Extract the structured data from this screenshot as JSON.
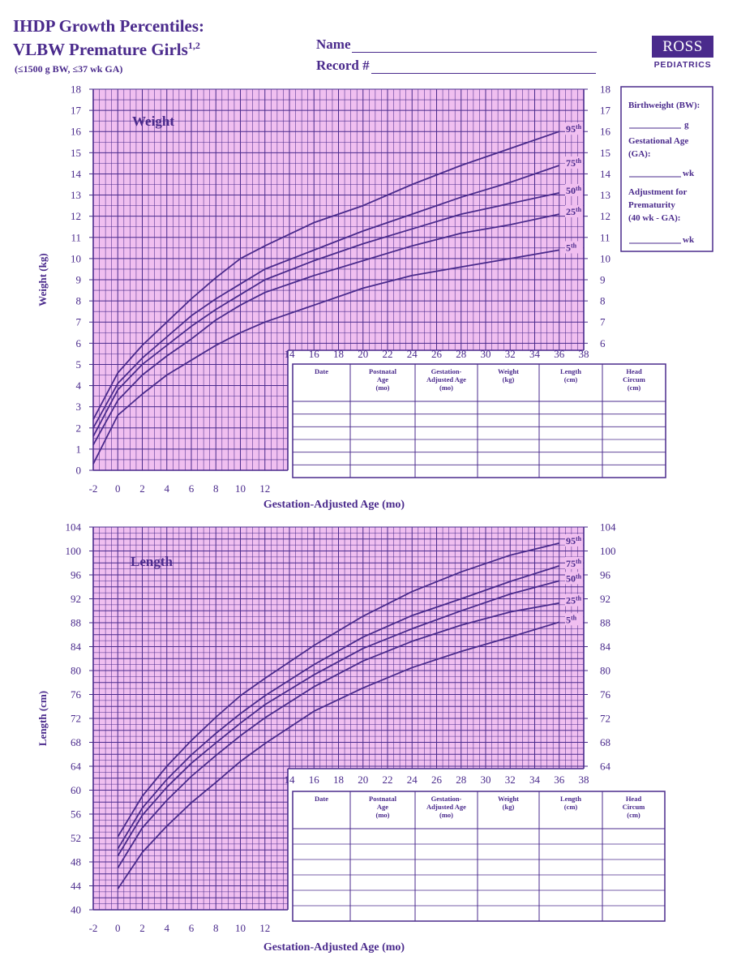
{
  "header": {
    "title_line1": "IHDP Growth Percentiles:",
    "title_line2": "VLBW Premature Girls",
    "title_sup": "1,2",
    "subtitle": "(≤1500 g BW, ≤37 wk GA)",
    "name_label": "Name",
    "record_label": "Record #"
  },
  "logo": {
    "brand": "ROSS",
    "sub": "PEDIATRICS"
  },
  "ga_box": {
    "birthweight_label": "Birthweight (BW):",
    "birthweight_unit": "g",
    "ga_label_1": "Gestational Age",
    "ga_label_2": "(GA):",
    "ga_unit": "wk",
    "adj_label_1": "Adjustment for",
    "adj_label_2": "Prematurity",
    "adj_label_3": "(40 wk - GA):",
    "adj_unit": "wk"
  },
  "table": {
    "headers": [
      [
        "Date"
      ],
      [
        "Postnatal",
        "Age",
        "(mo)"
      ],
      [
        "Gestation-",
        "Adjusted Age",
        "(mo)"
      ],
      [
        "Weight",
        "(kg)"
      ],
      [
        "Length",
        "(cm)"
      ],
      [
        "Head",
        "Circum",
        "(cm)"
      ]
    ]
  },
  "chart_data": [
    {
      "type": "line",
      "title": "Weight",
      "xlabel": "Gestation-Adjusted Age (mo)",
      "ylabel": "Weight (kg)",
      "xlim": [
        -2,
        38
      ],
      "ylim": [
        0,
        18
      ],
      "x_ticks_lower": [
        -2,
        0,
        2,
        4,
        6,
        8,
        10,
        12
      ],
      "x_ticks_upper": [
        14,
        16,
        18,
        20,
        22,
        24,
        26,
        28,
        30,
        32,
        34,
        36,
        38
      ],
      "y_ticks_left": [
        0,
        1,
        2,
        3,
        4,
        5,
        6,
        7,
        8,
        9,
        10,
        11,
        12,
        13,
        14,
        15,
        16,
        17,
        18
      ],
      "y_ticks_right": [
        6,
        7,
        8,
        9,
        10,
        11,
        12,
        13,
        14,
        15,
        16,
        17,
        18
      ],
      "grid": true,
      "series": [
        {
          "name": "95th",
          "x": [
            -2,
            0,
            2,
            4,
            6,
            8,
            10,
            12,
            16,
            20,
            24,
            28,
            32,
            36
          ],
          "values": [
            2.4,
            4.6,
            5.9,
            7.0,
            8.1,
            9.1,
            10.0,
            10.6,
            11.7,
            12.5,
            13.5,
            14.4,
            15.2,
            16.0
          ]
        },
        {
          "name": "75th",
          "x": [
            -2,
            0,
            2,
            4,
            6,
            8,
            10,
            12,
            16,
            20,
            24,
            28,
            32,
            36
          ],
          "values": [
            2.0,
            4.1,
            5.3,
            6.3,
            7.3,
            8.1,
            8.8,
            9.5,
            10.4,
            11.3,
            12.1,
            12.9,
            13.6,
            14.4
          ]
        },
        {
          "name": "50th",
          "x": [
            -2,
            0,
            2,
            4,
            6,
            8,
            10,
            12,
            16,
            20,
            24,
            28,
            32,
            36
          ],
          "values": [
            1.6,
            3.8,
            5.0,
            5.9,
            6.8,
            7.6,
            8.3,
            9.0,
            9.9,
            10.7,
            11.4,
            12.1,
            12.6,
            13.1
          ]
        },
        {
          "name": "25th",
          "x": [
            -2,
            0,
            2,
            4,
            6,
            8,
            10,
            12,
            16,
            20,
            24,
            28,
            32,
            36
          ],
          "values": [
            1.2,
            3.3,
            4.5,
            5.4,
            6.2,
            7.1,
            7.8,
            8.4,
            9.2,
            9.9,
            10.6,
            11.2,
            11.6,
            12.1
          ]
        },
        {
          "name": "5th",
          "x": [
            -2,
            0,
            2,
            4,
            6,
            8,
            10,
            12,
            16,
            20,
            24,
            28,
            32,
            36
          ],
          "values": [
            0.3,
            2.6,
            3.6,
            4.5,
            5.2,
            5.9,
            6.5,
            7.0,
            7.8,
            8.6,
            9.2,
            9.6,
            10.0,
            10.4
          ]
        }
      ]
    },
    {
      "type": "line",
      "title": "Length",
      "xlabel": "Gestation-Adjusted Age (mo)",
      "ylabel": "Length (cm)",
      "xlim": [
        -2,
        38
      ],
      "ylim": [
        40,
        104
      ],
      "x_ticks_lower": [
        -2,
        0,
        2,
        4,
        6,
        8,
        10,
        12
      ],
      "x_ticks_upper": [
        14,
        16,
        18,
        20,
        22,
        24,
        26,
        28,
        30,
        32,
        34,
        36,
        38
      ],
      "y_ticks_left": [
        40,
        44,
        48,
        52,
        56,
        60,
        64,
        68,
        72,
        76,
        80,
        84,
        88,
        92,
        96,
        100,
        104
      ],
      "y_ticks_right": [
        64,
        68,
        72,
        76,
        80,
        84,
        88,
        92,
        96,
        100,
        104
      ],
      "grid": true,
      "series": [
        {
          "name": "95th",
          "x": [
            0,
            2,
            4,
            6,
            8,
            10,
            12,
            16,
            20,
            24,
            28,
            32,
            36
          ],
          "values": [
            52.2,
            59.0,
            64.0,
            68.3,
            72.2,
            75.8,
            78.7,
            84.2,
            89.1,
            93.2,
            96.5,
            99.3,
            101.3
          ]
        },
        {
          "name": "75th",
          "x": [
            0,
            2,
            4,
            6,
            8,
            10,
            12,
            16,
            20,
            24,
            28,
            32,
            36
          ],
          "values": [
            50.2,
            57.0,
            61.8,
            65.9,
            69.5,
            72.8,
            75.8,
            81.0,
            85.6,
            89.2,
            92.0,
            94.9,
            97.5
          ]
        },
        {
          "name": "50th",
          "x": [
            0,
            2,
            4,
            6,
            8,
            10,
            12,
            16,
            20,
            24,
            28,
            32,
            36
          ],
          "values": [
            49.0,
            55.8,
            60.5,
            64.5,
            67.9,
            71.2,
            74.3,
            79.3,
            83.7,
            87.0,
            90.0,
            92.8,
            95.0
          ]
        },
        {
          "name": "25th",
          "x": [
            0,
            2,
            4,
            6,
            8,
            10,
            12,
            16,
            20,
            24,
            28,
            32,
            36
          ],
          "values": [
            47.0,
            53.7,
            58.3,
            62.3,
            65.8,
            69.1,
            72.1,
            77.3,
            81.6,
            84.9,
            87.6,
            89.8,
            91.3
          ]
        },
        {
          "name": "5th",
          "x": [
            0,
            2,
            4,
            6,
            8,
            10,
            12,
            16,
            20,
            24,
            28,
            32,
            36
          ],
          "values": [
            43.5,
            49.6,
            54.0,
            57.9,
            61.3,
            64.8,
            67.8,
            73.2,
            77.1,
            80.5,
            83.2,
            85.6,
            88.1
          ]
        }
      ]
    }
  ]
}
